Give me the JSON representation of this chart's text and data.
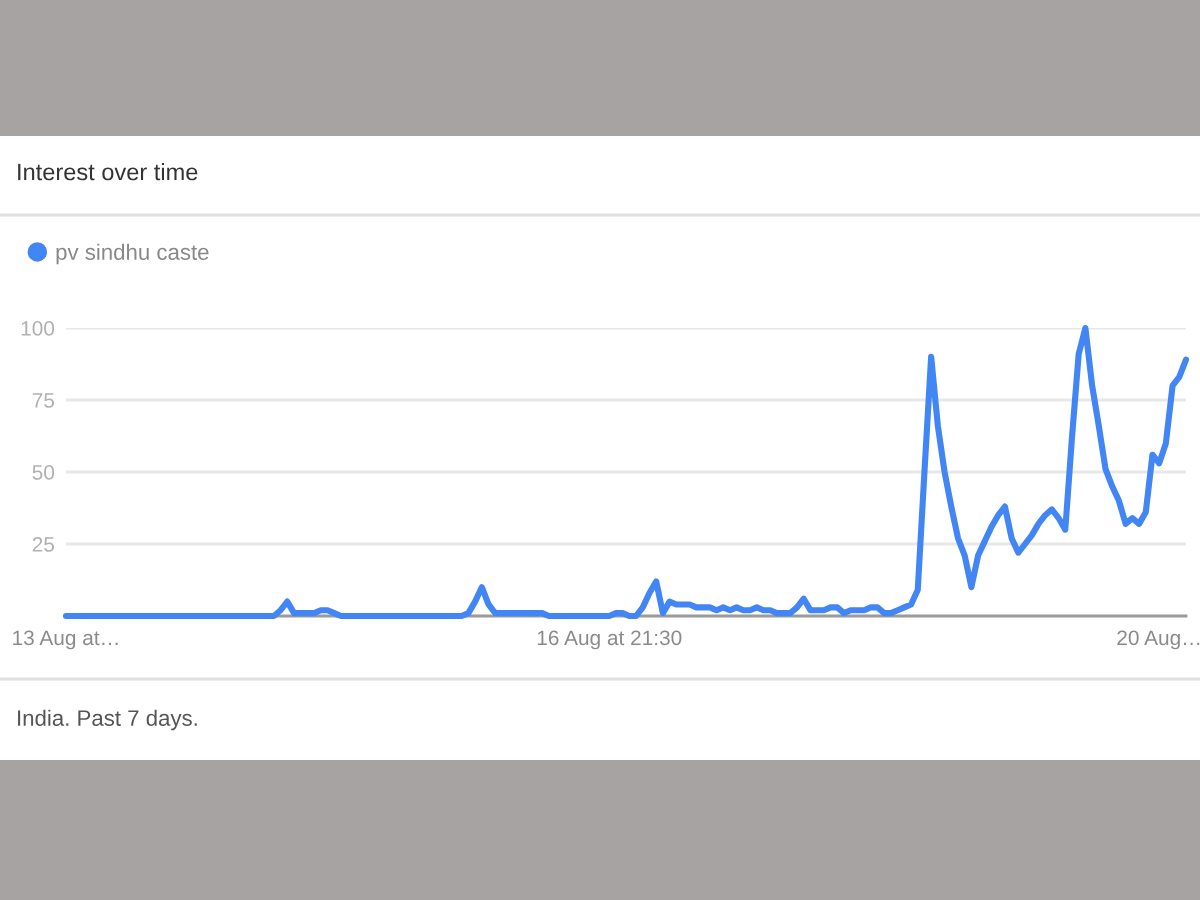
{
  "chart_data": {
    "type": "line",
    "title": "Interest over time",
    "categories": [
      "13 Aug at…",
      null,
      null,
      null,
      null,
      null,
      null,
      null,
      null,
      null,
      null,
      null,
      null,
      null,
      null,
      null,
      null,
      null,
      null,
      null,
      null,
      null,
      null,
      null,
      null,
      null,
      null,
      null,
      null,
      null,
      null,
      null,
      null,
      null,
      null,
      null,
      null,
      null,
      null,
      null,
      null,
      null,
      null,
      null,
      null,
      null,
      null,
      null,
      null,
      null,
      null,
      null,
      null,
      null,
      null,
      null,
      null,
      null,
      null,
      null,
      null,
      null,
      null,
      null,
      null,
      null,
      null,
      null,
      null,
      null,
      null,
      null,
      null,
      null,
      null,
      null,
      null,
      null,
      null,
      null,
      null,
      "16 Aug at 21:30",
      null,
      null,
      null,
      null,
      null,
      null,
      null,
      null,
      null,
      null,
      null,
      null,
      null,
      null,
      null,
      null,
      null,
      null,
      null,
      null,
      null,
      null,
      null,
      null,
      null,
      null,
      null,
      null,
      null,
      null,
      null,
      null,
      null,
      null,
      null,
      null,
      null,
      null,
      null,
      null,
      null,
      null,
      null,
      null,
      null,
      null,
      null,
      null,
      null,
      null,
      null,
      null,
      null,
      null,
      null,
      null,
      null,
      null,
      null,
      null,
      null,
      null,
      null,
      null,
      null,
      null,
      null,
      null,
      null,
      null,
      null,
      null,
      null,
      null,
      null,
      null,
      null,
      null,
      null,
      null,
      null,
      "20 Aug…",
      null,
      null,
      null,
      null
    ],
    "series": [
      {
        "name": "pv sindhu caste",
        "color": "#4285f4",
        "values": [
          0,
          0,
          0,
          0,
          0,
          0,
          0,
          0,
          0,
          0,
          0,
          0,
          0,
          0,
          0,
          0,
          0,
          0,
          0,
          0,
          0,
          0,
          0,
          0,
          0,
          0,
          0,
          0,
          0,
          0,
          0,
          0,
          2,
          5,
          1,
          1,
          1,
          1,
          2,
          2,
          1,
          0,
          0,
          0,
          0,
          0,
          0,
          0,
          0,
          0,
          0,
          0,
          0,
          0,
          0,
          0,
          0,
          0,
          0,
          0,
          1,
          5,
          10,
          4,
          1,
          1,
          1,
          1,
          1,
          1,
          1,
          1,
          0,
          0,
          0,
          0,
          0,
          0,
          0,
          0,
          0,
          0,
          1,
          1,
          0,
          0,
          3,
          8,
          12,
          1,
          5,
          4,
          4,
          4,
          3,
          3,
          3,
          2,
          3,
          2,
          3,
          2,
          2,
          3,
          2,
          2,
          1,
          1,
          1,
          3,
          6,
          2,
          2,
          2,
          3,
          3,
          1,
          2,
          2,
          2,
          3,
          3,
          1,
          1,
          2,
          3,
          4,
          9,
          50,
          90,
          66,
          50,
          38,
          27,
          21,
          10,
          21,
          26,
          31,
          35,
          38,
          27,
          22,
          25,
          28,
          32,
          35,
          37,
          34,
          30,
          62,
          91,
          100,
          80,
          66,
          51,
          45,
          40,
          32,
          34,
          32,
          36,
          56,
          53,
          60,
          80,
          83,
          89
        ]
      }
    ],
    "ylim": [
      0,
      100
    ],
    "yticks": [
      25,
      50,
      75,
      100
    ],
    "grid": "y",
    "legend": "top left",
    "marker": "none",
    "line_style": "solid",
    "annotations": [
      "India. Past 7 days."
    ]
  }
}
